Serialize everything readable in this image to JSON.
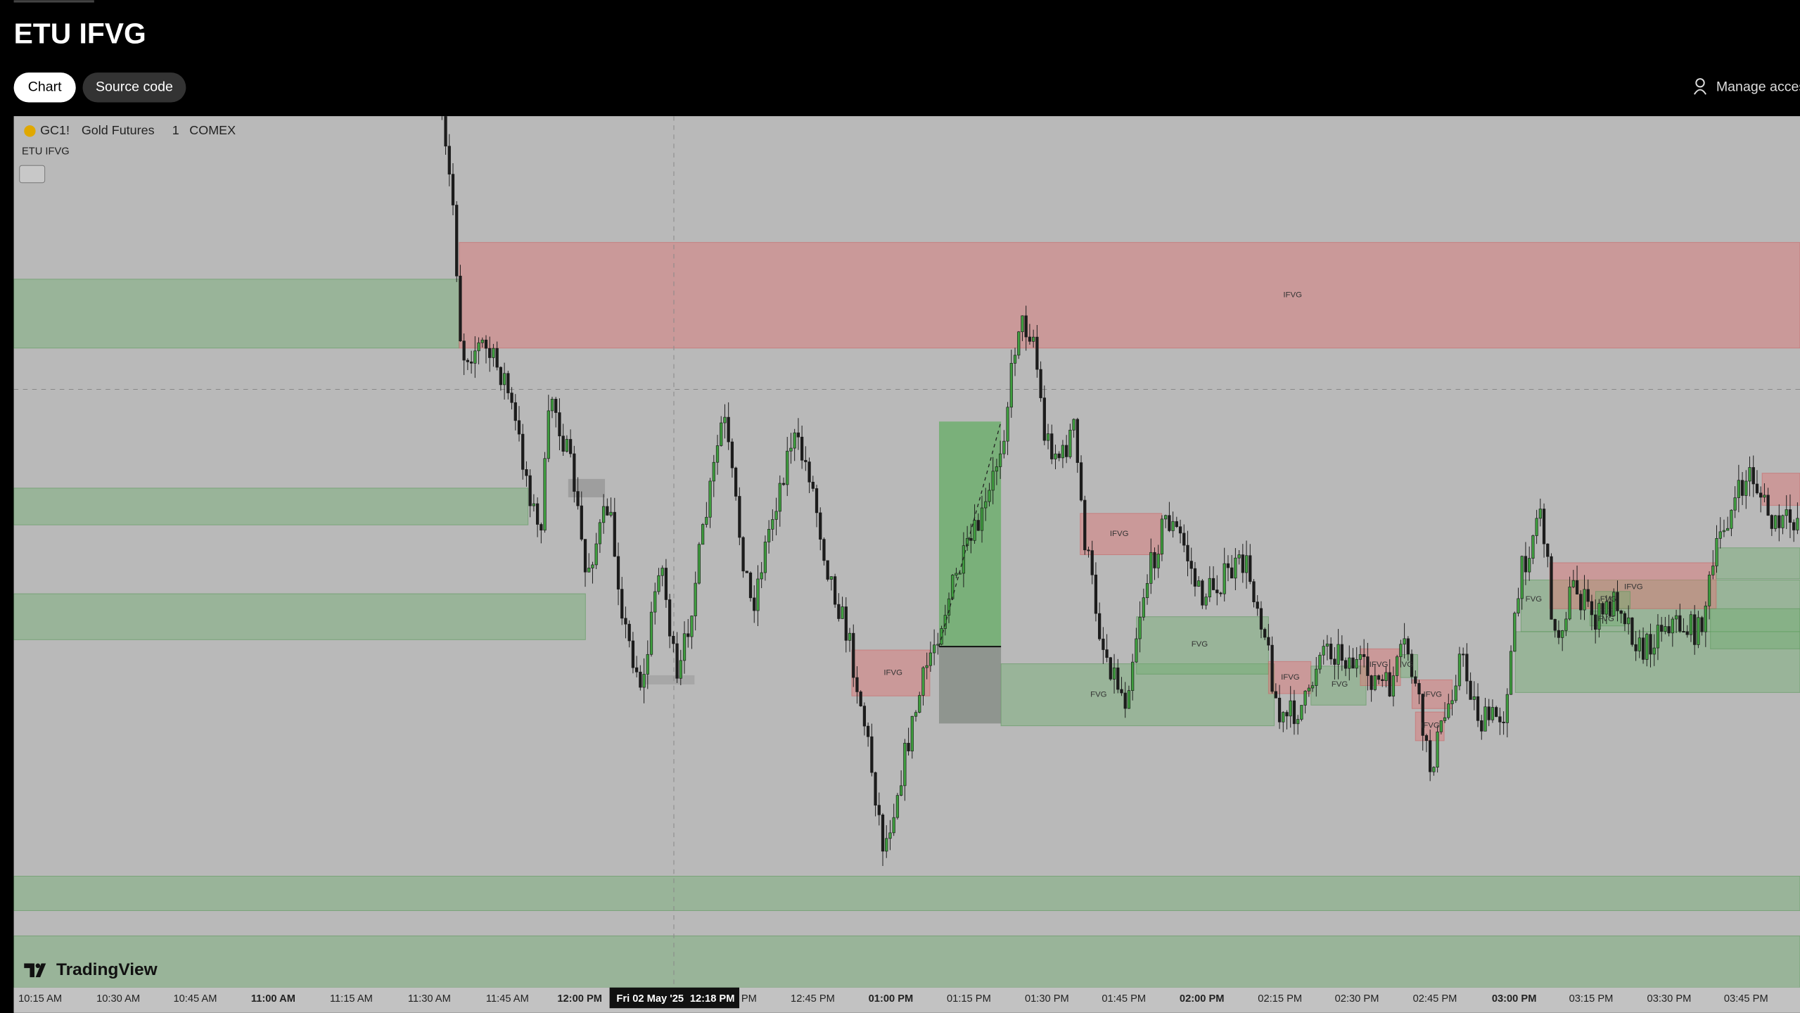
{
  "header": {
    "title": "ETU IFVG",
    "tabs": [
      "Chart",
      "Source code"
    ],
    "manage_access": "Manage access"
  },
  "chart": {
    "symbol": "GC1!",
    "name": "Gold Futures",
    "interval": "1",
    "exchange": "COMEX",
    "indicator": "ETU IFVG",
    "zone_labels": [
      "IFVG",
      "IFVG",
      "FVG",
      "IFVG",
      "FVG",
      "IFVG",
      "FVG",
      "IFVG",
      "VG",
      "IFVG",
      "IFVG",
      "FVG",
      "IFVG",
      "FVG",
      "FVG"
    ],
    "time_axis": [
      "10:15 AM",
      "10:30 AM",
      "10:45 AM",
      "11:00 AM",
      "11:15 AM",
      "11:30 AM",
      "11:45 AM",
      "12:00 PM",
      "12:30 PM",
      "12:45 PM",
      "01:00 PM",
      "01:15 PM",
      "01:30 PM",
      "01:45 PM",
      "02:00 PM",
      "02:15 PM",
      "02:30 PM",
      "02:45 PM",
      "03:00 PM",
      "03:15 PM",
      "03:30 PM",
      "03:45 PM"
    ],
    "crosshair": {
      "date": "Fri 02 May '25",
      "time": "12:18 PM"
    },
    "logo": "TradingView"
  }
}
